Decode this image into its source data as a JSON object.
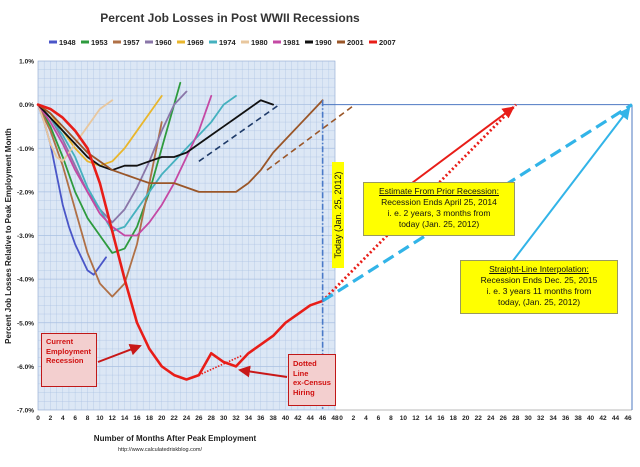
{
  "chart_data": {
    "type": "line",
    "title": "Percent Job Losses in Post WWII Recessions",
    "xlabel": "Number of Months After Peak Employment",
    "ylabel": "Percent Job Losses Relative to Peak Employment Month",
    "credit": "http://www.calculatedriskblog.com/",
    "xlim": [
      0,
      48
    ],
    "ylim": [
      -7.0,
      1.0
    ],
    "x_ticks": [
      "0",
      "2",
      "4",
      "6",
      "8",
      "10",
      "12",
      "14",
      "16",
      "18",
      "20",
      "22",
      "24",
      "26",
      "28",
      "30",
      "32",
      "34",
      "36",
      "38",
      "40",
      "42",
      "44",
      "46",
      "48"
    ],
    "x_ticks_extension": [
      "0",
      "2",
      "4",
      "6",
      "8",
      "10",
      "12",
      "14",
      "16",
      "18",
      "20",
      "22",
      "24",
      "26",
      "28",
      "30",
      "32",
      "34",
      "36",
      "38",
      "40",
      "42",
      "44",
      "46"
    ],
    "y_ticks": [
      "1.0%",
      "0.0%",
      "-1.0%",
      "-2.0%",
      "-3.0%",
      "-4.0%",
      "-5.0%",
      "-6.0%",
      "-7.0%"
    ],
    "grid": true,
    "legend_position": "top",
    "series": [
      {
        "name": "1948",
        "color": "#4a56c8",
        "x": [
          0,
          1,
          2,
          3,
          4,
          5,
          6,
          7,
          8,
          9,
          10,
          11
        ],
        "values": [
          0,
          -0.4,
          -0.9,
          -1.6,
          -2.3,
          -2.8,
          -3.2,
          -3.5,
          -3.8,
          -3.9,
          -3.7,
          -3.5
        ]
      },
      {
        "name": "1953",
        "color": "#2e9b3e",
        "x": [
          0,
          2,
          4,
          6,
          8,
          10,
          12,
          14,
          16,
          18,
          20,
          22,
          23
        ],
        "values": [
          0,
          -0.5,
          -1.2,
          -2.0,
          -2.6,
          -3.0,
          -3.4,
          -3.3,
          -2.8,
          -2.0,
          -1.0,
          0.0,
          0.5
        ]
      },
      {
        "name": "1957",
        "color": "#b07046",
        "x": [
          0,
          2,
          4,
          6,
          8,
          10,
          12,
          14,
          16,
          18,
          20
        ],
        "values": [
          0,
          -0.6,
          -1.4,
          -2.4,
          -3.4,
          -4.1,
          -4.4,
          -4.1,
          -3.2,
          -1.8,
          -0.4
        ]
      },
      {
        "name": "1960",
        "color": "#8a76a8",
        "x": [
          0,
          2,
          4,
          6,
          8,
          10,
          12,
          14,
          16,
          18,
          20,
          22,
          24
        ],
        "values": [
          0,
          -0.3,
          -0.8,
          -1.4,
          -2.0,
          -2.4,
          -2.7,
          -2.4,
          -1.9,
          -1.3,
          -0.6,
          0.0,
          0.3
        ]
      },
      {
        "name": "1969",
        "color": "#e9b62c",
        "x": [
          0,
          2,
          4,
          6,
          8,
          10,
          12,
          14,
          16,
          18,
          20
        ],
        "values": [
          0,
          -0.2,
          -0.6,
          -1.0,
          -1.3,
          -1.4,
          -1.3,
          -1.0,
          -0.6,
          -0.2,
          0.2
        ]
      },
      {
        "name": "1974",
        "color": "#45b1bf",
        "x": [
          0,
          2,
          4,
          6,
          8,
          10,
          12,
          14,
          16,
          18,
          20,
          22,
          24,
          26,
          28,
          30,
          32
        ],
        "values": [
          0,
          -0.3,
          -0.7,
          -1.2,
          -1.9,
          -2.4,
          -2.9,
          -2.8,
          -2.4,
          -2.0,
          -1.6,
          -1.3,
          -1.0,
          -0.7,
          -0.4,
          0.0,
          0.2
        ]
      },
      {
        "name": "1980",
        "color": "#e8c79e",
        "x": [
          0,
          1,
          2,
          3,
          4,
          5,
          6,
          7,
          8,
          9,
          10,
          11,
          12
        ],
        "values": [
          0,
          -0.4,
          -0.9,
          -1.2,
          -1.3,
          -1.1,
          -0.9,
          -0.7,
          -0.5,
          -0.3,
          -0.1,
          0.0,
          0.1
        ]
      },
      {
        "name": "1981",
        "color": "#c449a4",
        "x": [
          0,
          2,
          4,
          6,
          8,
          10,
          12,
          14,
          16,
          18,
          20,
          22,
          24,
          26,
          28
        ],
        "values": [
          0,
          -0.4,
          -0.9,
          -1.5,
          -2.0,
          -2.5,
          -2.8,
          -3.0,
          -3.0,
          -2.7,
          -2.3,
          -1.8,
          -1.2,
          -0.6,
          0.2
        ]
      },
      {
        "name": "1990",
        "color": "#111111",
        "x": [
          0,
          2,
          4,
          6,
          8,
          10,
          12,
          14,
          16,
          18,
          20,
          22,
          24,
          26,
          28,
          30,
          32,
          34,
          36,
          38
        ],
        "values": [
          0,
          -0.3,
          -0.6,
          -0.9,
          -1.2,
          -1.4,
          -1.5,
          -1.4,
          -1.4,
          -1.3,
          -1.2,
          -1.2,
          -1.1,
          -0.9,
          -0.7,
          -0.5,
          -0.3,
          -0.1,
          0.1,
          0.0
        ]
      },
      {
        "name": "2001",
        "color": "#9a5628",
        "x": [
          0,
          2,
          4,
          6,
          8,
          10,
          12,
          14,
          16,
          18,
          20,
          22,
          24,
          26,
          28,
          30,
          32,
          34,
          36,
          38,
          40,
          42,
          44,
          46
        ],
        "values": [
          0,
          -0.2,
          -0.5,
          -0.8,
          -1.1,
          -1.3,
          -1.5,
          -1.6,
          -1.7,
          -1.8,
          -1.8,
          -1.8,
          -1.9,
          -2.0,
          -2.0,
          -2.0,
          -2.0,
          -1.8,
          -1.5,
          -1.1,
          -0.8,
          -0.5,
          -0.2,
          0.1
        ]
      },
      {
        "name": "2007",
        "color": "#e81d18",
        "x": [
          0,
          2,
          4,
          6,
          8,
          10,
          12,
          14,
          16,
          18,
          20,
          22,
          24,
          26,
          28,
          30,
          32,
          34,
          36,
          38,
          40,
          42,
          44,
          46
        ],
        "values": [
          0,
          -0.1,
          -0.3,
          -0.6,
          -1.0,
          -1.8,
          -2.9,
          -4.0,
          -5.0,
          -5.6,
          -6.0,
          -6.2,
          -6.3,
          -6.2,
          -5.7,
          -5.9,
          -6.0,
          -5.7,
          -5.5,
          -5.3,
          -5.0,
          -4.8,
          -4.6,
          -4.5
        ]
      }
    ],
    "projections": [
      {
        "from_series": "1990",
        "style": "dashed",
        "color": "#1e3a68",
        "x": [
          26,
          39
        ],
        "values": [
          -1.3,
          0.0
        ]
      },
      {
        "from_series": "2001",
        "style": "dashed",
        "color": "#9a5628",
        "x": [
          37,
          51
        ],
        "values": [
          -1.5,
          0.0
        ]
      },
      {
        "from_series": "2007",
        "style": "dotted",
        "color": "#e81d18",
        "x": [
          46,
          76
        ],
        "values": [
          -4.5,
          0.0
        ]
      },
      {
        "from_series": "2007",
        "style": "dashed",
        "color": "#32b4e8",
        "x": [
          46,
          94
        ],
        "values": [
          -4.5,
          0.0
        ]
      }
    ]
  },
  "annotations": {
    "today_label": "Today (Jan. 25, 2012)",
    "estimate": {
      "title": "Estimate From Prior Recession:",
      "line1": "Recession Ends April 25, 2014",
      "line2": "i. e.  2 years, 3 months from",
      "line3": "today (Jan. 25, 2012)"
    },
    "interpolation": {
      "title": "Straight-Line Interpolation:",
      "line1": "Recession Ends Dec. 25, 2015",
      "line2": "i. e.  3 years  11 months from",
      "line3": "today, (Jan. 25, 2012)"
    },
    "current_label": [
      "Current",
      "Employment",
      "Recession"
    ],
    "census_label": [
      "Dotted Line",
      "ex-Census",
      "Hiring"
    ]
  },
  "colors": {
    "plot_bg": "#dce7f5",
    "grid": "#a9c0e2",
    "estimate_arrow": "#e81d18",
    "interpolation_arrow": "#32b4e8",
    "annotation_fill": "#ffff00",
    "label_fill": "#f3cfcf"
  }
}
